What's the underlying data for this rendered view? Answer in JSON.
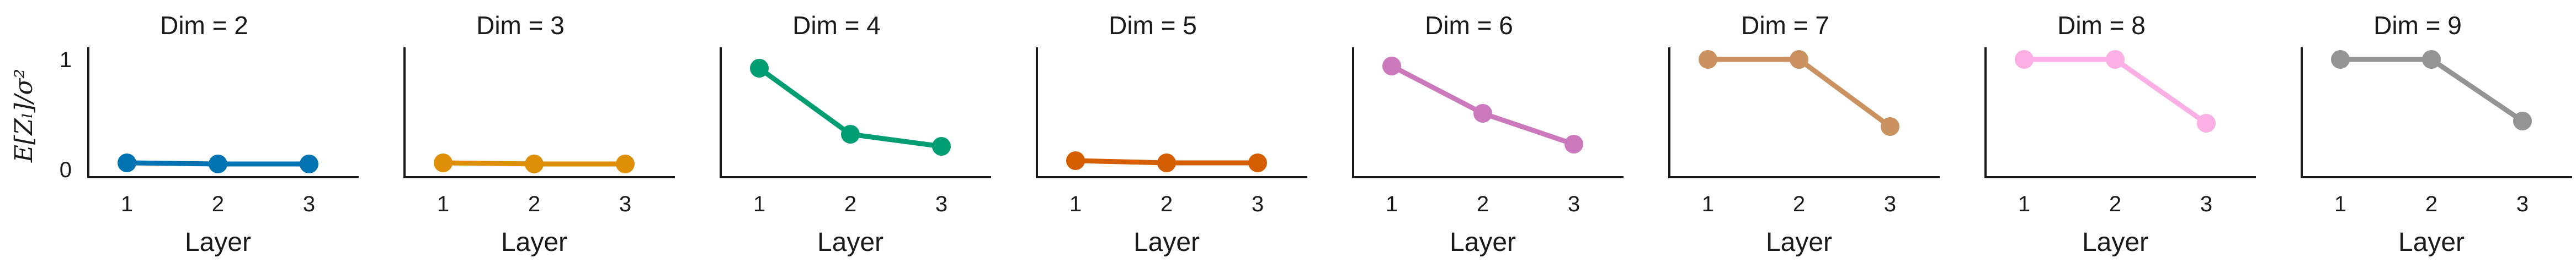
{
  "chart_data": {
    "type": "line",
    "ylabel": "E[Z_l]/σ²",
    "ylabel_display": "E[Zₗ]/σ²",
    "y_ticks": [
      0,
      1
    ],
    "y_tick_labels": [
      "0",
      "1"
    ],
    "ylim": [
      0,
      1.1
    ],
    "x_ticks": [
      1,
      2,
      3
    ],
    "x_tick_labels": [
      "1",
      "2",
      "3"
    ],
    "xlabel": "Layer",
    "grid": false,
    "panels": [
      {
        "title": "Dim = 2",
        "color": "#0173b2",
        "x": [
          1,
          2,
          3
        ],
        "values": [
          0.06,
          0.05,
          0.05
        ]
      },
      {
        "title": "Dim = 3",
        "color": "#de8f05",
        "x": [
          1,
          2,
          3
        ],
        "values": [
          0.06,
          0.05,
          0.05
        ]
      },
      {
        "title": "Dim = 4",
        "color": "#029e73",
        "x": [
          1,
          2,
          3
        ],
        "values": [
          0.92,
          0.32,
          0.21
        ]
      },
      {
        "title": "Dim = 5",
        "color": "#d55e00",
        "x": [
          1,
          2,
          3
        ],
        "values": [
          0.08,
          0.06,
          0.06
        ]
      },
      {
        "title": "Dim = 6",
        "color": "#cc78bc",
        "x": [
          1,
          2,
          3
        ],
        "values": [
          0.94,
          0.51,
          0.23
        ]
      },
      {
        "title": "Dim = 7",
        "color": "#ca9161",
        "x": [
          1,
          2,
          3
        ],
        "values": [
          1.0,
          1.0,
          0.39
        ]
      },
      {
        "title": "Dim = 8",
        "color": "#fbafe4",
        "x": [
          1,
          2,
          3
        ],
        "values": [
          1.0,
          1.0,
          0.42
        ]
      },
      {
        "title": "Dim = 9",
        "color": "#949494",
        "x": [
          1,
          2,
          3
        ],
        "values": [
          1.0,
          1.0,
          0.44
        ]
      }
    ]
  }
}
